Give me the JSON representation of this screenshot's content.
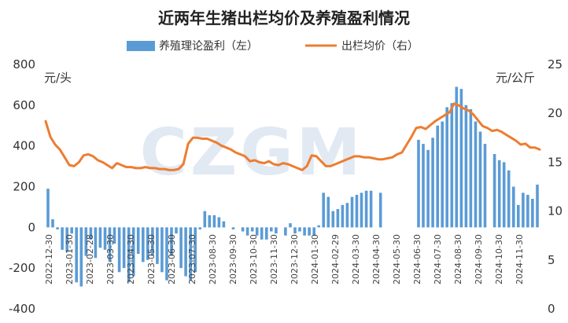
{
  "chart_data": {
    "type": "bar+line",
    "title": "近两年生猪出栏均价及养殖盈利情况",
    "watermark": "CZGM",
    "left_axis": {
      "unit": "元/头",
      "ylim": [
        -400,
        800
      ],
      "ticks": [
        "-400",
        "-200",
        "0",
        "200",
        "400",
        "600",
        "800"
      ]
    },
    "right_axis": {
      "unit": "元/公斤",
      "ylim": [
        0,
        25
      ],
      "ticks": [
        "0",
        "5",
        "10",
        "15",
        "20",
        "25"
      ]
    },
    "legend": [
      {
        "label": "养殖理论盈利（左）",
        "type": "bar",
        "color": "#5b9bd5"
      },
      {
        "label": "出栏均价（右）",
        "type": "line",
        "color": "#ed7d31"
      }
    ],
    "x_labels": [
      "2022-12-30",
      "2023-01-30",
      "2023-02-28",
      "2023-03-30",
      "2023-04-30",
      "2023-05-30",
      "2023-06-30",
      "2023-07-30",
      "2023-08-30",
      "2023-09-30",
      "2023-10-30",
      "2023-11-30",
      "2023-12-30",
      "2024-01-30",
      "2024-02-29",
      "2024-03-30",
      "2024-04-30",
      "2024-05-30",
      "2024-06-30",
      "2024-07-30",
      "2024-08-30",
      "2024-09-30",
      "2024-10-30",
      "2024-11-30"
    ],
    "series": [
      {
        "name": "养殖理论盈利（左）",
        "type": "bar",
        "color": "#5b9bd5",
        "values": [
          190,
          40,
          -10,
          -110,
          -120,
          -30,
          -270,
          -290,
          -140,
          -60,
          -150,
          -100,
          -110,
          -170,
          -80,
          -220,
          -200,
          -270,
          -240,
          -130,
          -170,
          -160,
          -140,
          -180,
          -220,
          -260,
          -140,
          -30,
          -200,
          -240,
          -260,
          -220,
          -10,
          80,
          60,
          60,
          50,
          30,
          0,
          -10,
          0,
          -20,
          -40,
          -20,
          -40,
          -60,
          -60,
          -20,
          -30,
          0,
          -40,
          20,
          -30,
          -20,
          -40,
          -40,
          -40,
          10,
          170,
          150,
          80,
          90,
          110,
          120,
          150,
          160,
          170,
          180,
          180,
          0,
          170,
          0,
          0,
          0,
          0,
          0,
          0,
          0,
          430,
          410,
          380,
          440,
          500,
          520,
          590,
          610,
          690,
          680,
          600,
          580,
          520,
          470,
          410,
          0,
          360,
          330,
          320,
          280,
          200,
          110,
          170,
          160,
          140,
          210
        ]
      },
      {
        "name": "出栏均价（右）",
        "type": "line",
        "color": "#ed7d31",
        "values": [
          19.2,
          17.6,
          16.8,
          16.3,
          15.5,
          14.7,
          14.6,
          15.0,
          15.7,
          15.8,
          15.6,
          15.2,
          15.0,
          14.7,
          14.4,
          14.9,
          14.7,
          14.5,
          14.5,
          14.4,
          14.4,
          14.5,
          14.4,
          14.4,
          14.3,
          14.3,
          14.2,
          14.2,
          14.3,
          14.8,
          16.9,
          17.5,
          17.5,
          17.4,
          17.4,
          17.2,
          17.0,
          16.7,
          16.5,
          16.3,
          16.0,
          15.8,
          15.6,
          15.1,
          15.2,
          15.0,
          14.9,
          15.1,
          14.8,
          14.7,
          14.9,
          14.8,
          14.6,
          14.4,
          14.2,
          14.6,
          15.7,
          15.6,
          15.1,
          14.6,
          14.6,
          14.8,
          15.0,
          15.2,
          15.4,
          15.6,
          15.6,
          15.5,
          15.5,
          15.4,
          15.3,
          15.3,
          15.4,
          15.5,
          15.8,
          16.0,
          16.8,
          17.6,
          18.5,
          18.6,
          18.4,
          18.8,
          19.2,
          19.5,
          19.8,
          20.1,
          21.0,
          20.8,
          20.5,
          20.3,
          19.9,
          19.3,
          18.7,
          18.5,
          18.2,
          18.3,
          18.1,
          17.8,
          17.5,
          17.2,
          16.8,
          16.9,
          16.5,
          16.5,
          16.3
        ]
      }
    ]
  }
}
